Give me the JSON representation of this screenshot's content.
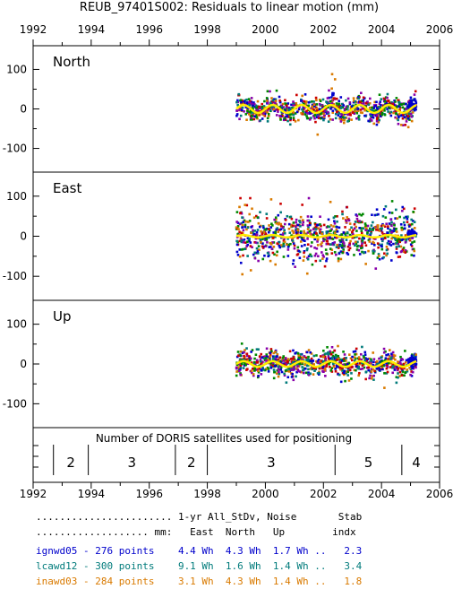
{
  "chart_data": {
    "type": "scatter",
    "title": "REUB_97401S002: Residuals to linear motion (mm)",
    "x_ticks": [
      "1992",
      "1994",
      "1996",
      "1998",
      "2000",
      "2002",
      "2004",
      "2006"
    ],
    "xlim": [
      1992,
      2006
    ],
    "ylim": [
      -160,
      160
    ],
    "y_ticks": [
      "100",
      "0",
      "-100"
    ],
    "panels": [
      {
        "name": "North",
        "data_start": 1999.0,
        "data_end": 2005.2,
        "scatter_sd": 15,
        "ann_amp": 10,
        "outliers": [
          [
            2002.3,
            88
          ],
          [
            2002.4,
            75
          ],
          [
            2001.8,
            -65
          ]
        ]
      },
      {
        "name": "East",
        "data_start": 1999.0,
        "data_end": 2005.2,
        "scatter_sd": 30,
        "ann_amp": 3,
        "outliers": [
          [
            1999.3,
            78
          ],
          [
            2000.2,
            92
          ],
          [
            1999.5,
            -85
          ]
        ]
      },
      {
        "name": "Up",
        "data_start": 1999.0,
        "data_end": 2005.2,
        "scatter_sd": 15,
        "ann_amp": 7,
        "outliers": [
          [
            2004.1,
            -60
          ],
          [
            2002.5,
            45
          ]
        ]
      }
    ],
    "satellites": {
      "label": "Number of DORIS satellites used for positioning",
      "segments": [
        {
          "start": 1992.7,
          "end": 1993.9,
          "count": "2"
        },
        {
          "start": 1993.9,
          "end": 1996.9,
          "count": "3"
        },
        {
          "start": 1996.9,
          "end": 1998.0,
          "count": "2"
        },
        {
          "start": 1998.0,
          "end": 2002.4,
          "count": "3"
        },
        {
          "start": 2002.4,
          "end": 2004.7,
          "count": "5"
        },
        {
          "start": 2004.7,
          "end": 2005.7,
          "count": "4"
        }
      ]
    },
    "series": [
      {
        "name": "ignwd05",
        "color": "#0000cc",
        "points": 276,
        "east": "4.4 Wh",
        "north": "4.3 Wh",
        "up": "1.7 Wh ..",
        "stab": "2.3"
      },
      {
        "name": "lcawd12",
        "color": "#007b7b",
        "points": 300,
        "east": "9.1 Wh",
        "north": "1.6 Wh",
        "up": "1.4 Wh ..",
        "stab": "3.4"
      },
      {
        "name": "inawd03",
        "color": "#d97a00",
        "points": 284,
        "east": "3.1 Wh",
        "north": "4.3 Wh",
        "up": "1.4 Wh ..",
        "stab": "1.8"
      }
    ],
    "extra_marker_colors": [
      "#cc0000",
      "#008800",
      "#8800aa"
    ],
    "fit_line_color": "#ffee00"
  },
  "stats_table": {
    "header_line1": "....................... 1-yr All_StDv, Noise       Stab",
    "header_line2": "................... mm:   East  North   Up        indx",
    "rows": [
      "ignwd05 - 276 points    4.4 Wh  4.3 Wh  1.7 Wh ..   2.3",
      "lcawd12 - 300 points    9.1 Wh  1.6 Wh  1.4 Wh ..   3.4",
      "inawd03 - 284 points    3.1 Wh  4.3 Wh  1.4 Wh ..   1.8"
    ]
  }
}
